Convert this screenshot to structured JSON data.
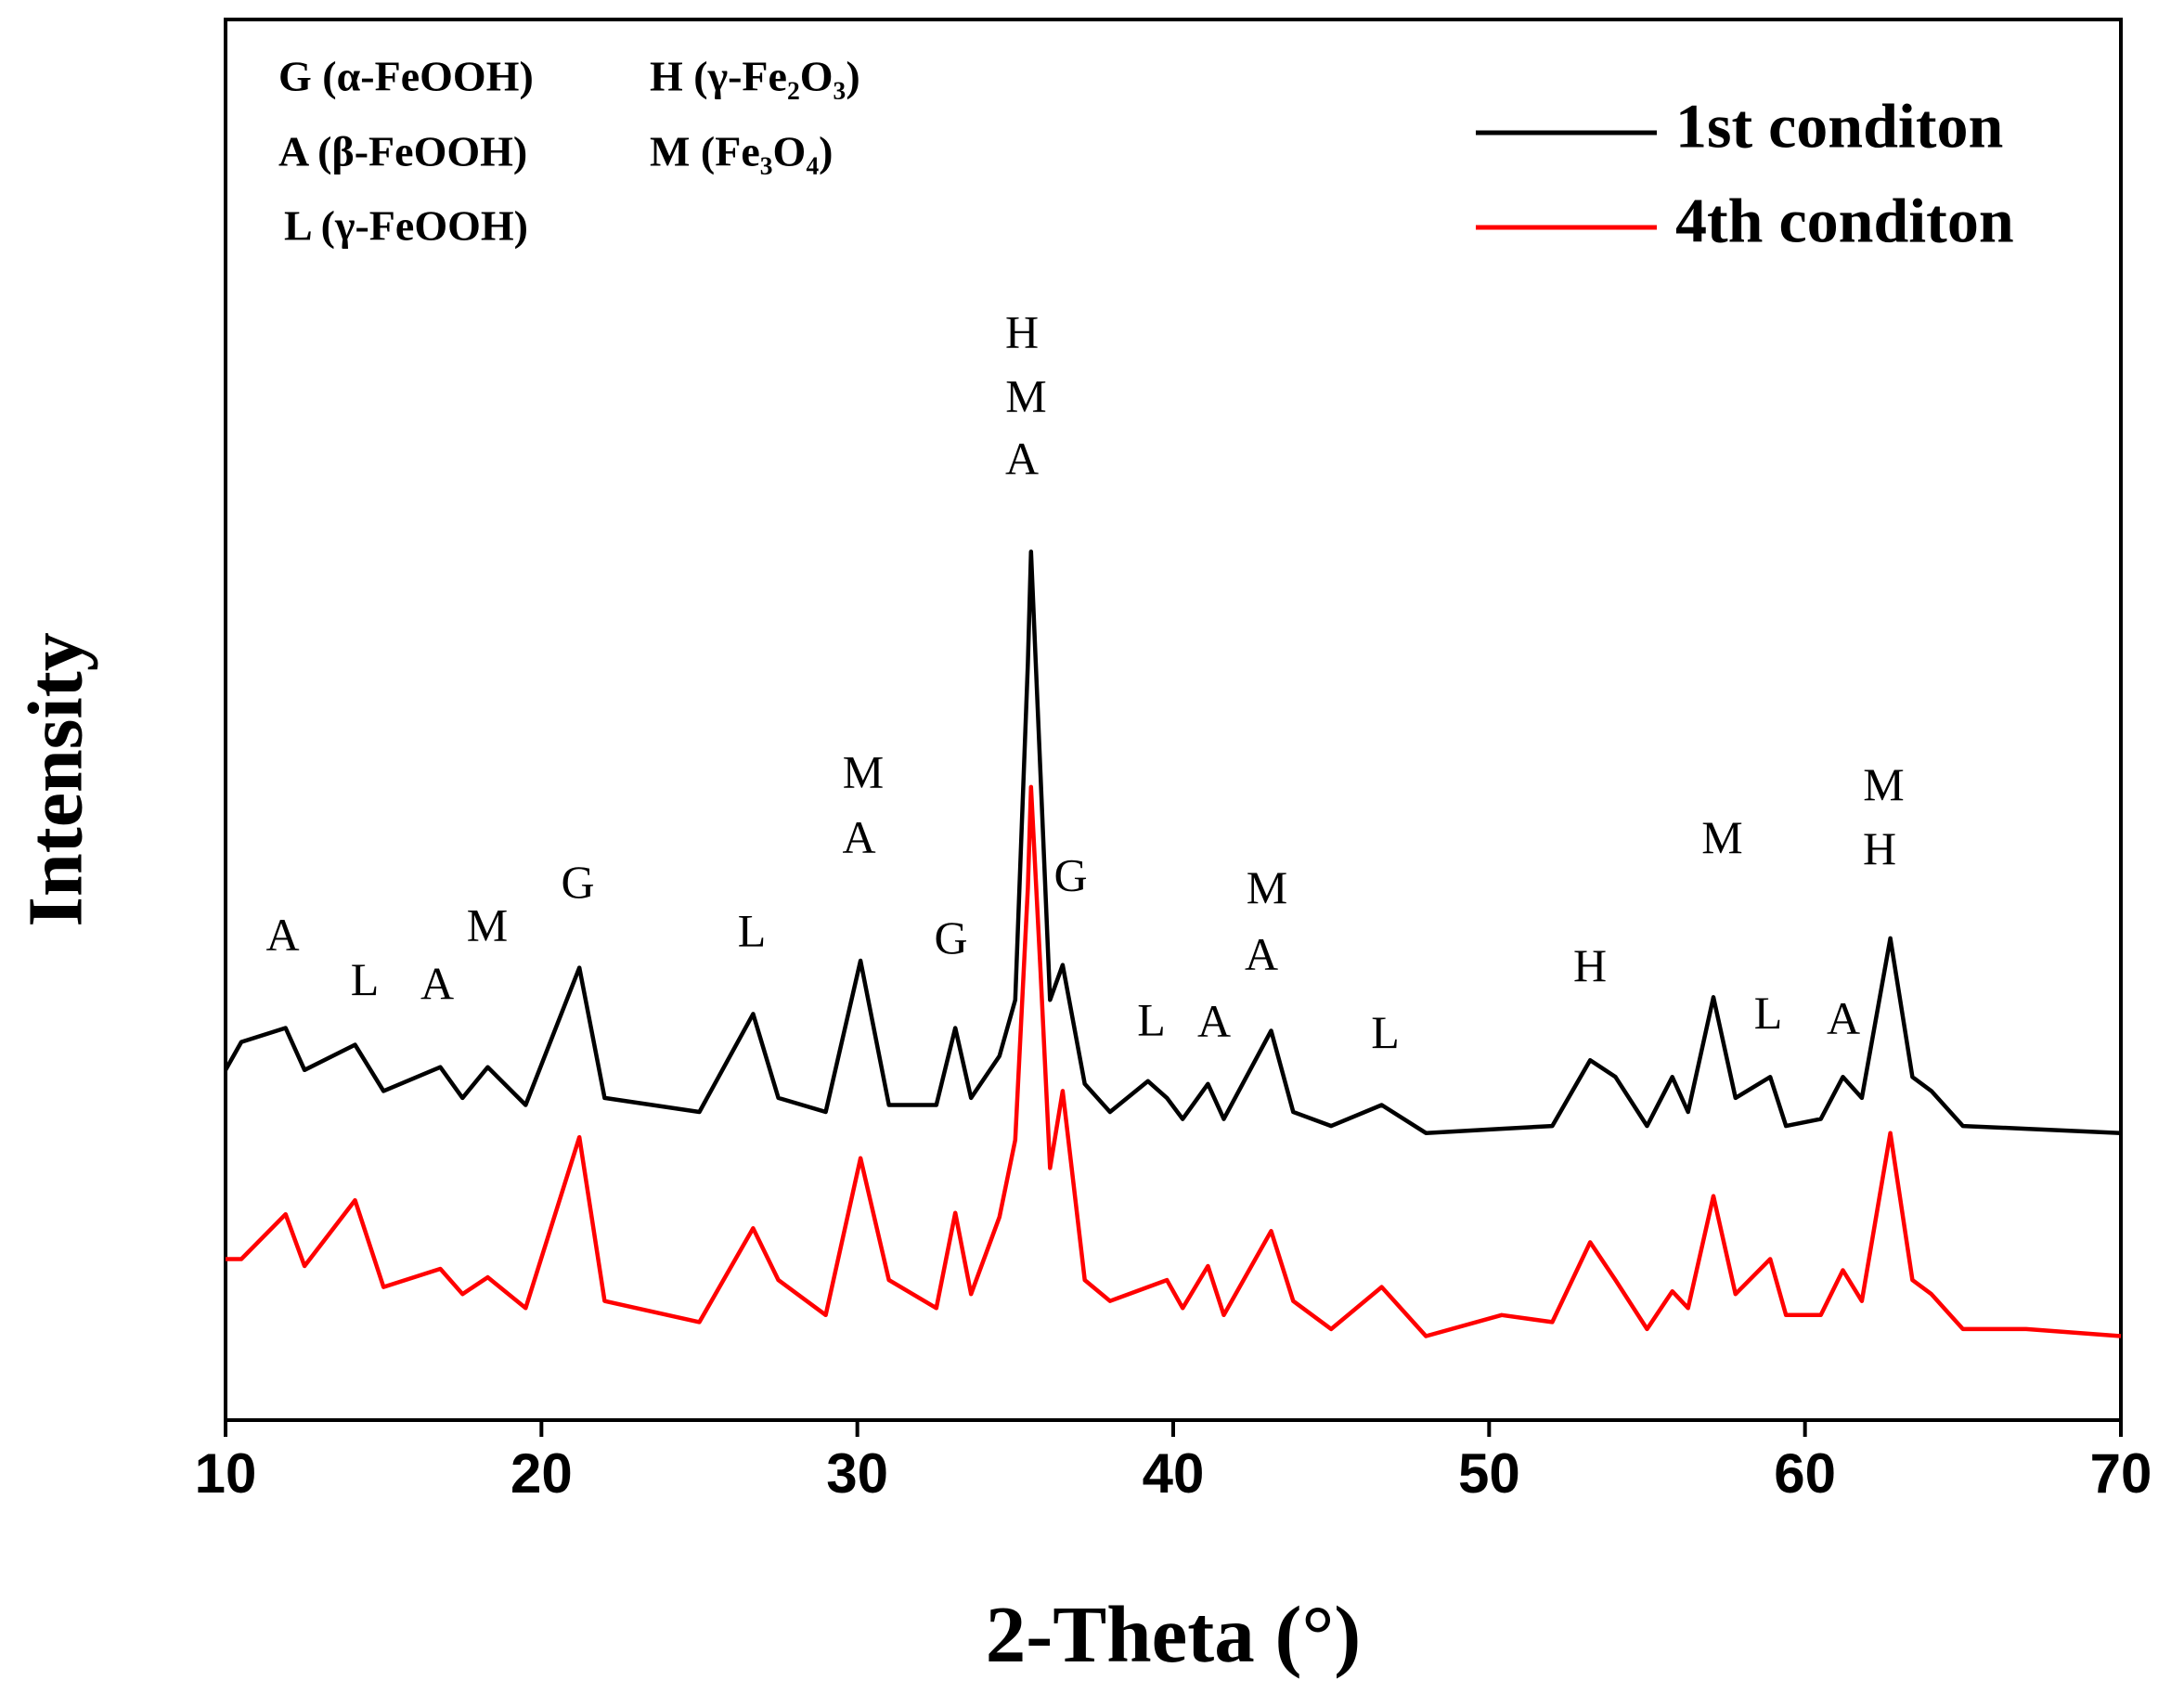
{
  "chart_data": {
    "type": "line",
    "x_label": "2-Theta (°)",
    "y_label": "Intensity",
    "xlim": [
      10,
      70
    ],
    "xticks": [
      10,
      20,
      30,
      40,
      50,
      60,
      70
    ],
    "ylim": [
      0,
      1000
    ],
    "x": [
      10,
      10.5,
      11.9,
      12.5,
      14.1,
      15,
      16.8,
      17.5,
      18.3,
      19.5,
      21.2,
      22,
      25,
      26.7,
      27.5,
      29,
      30.1,
      31,
      32.5,
      33.1,
      33.6,
      34.5,
      35,
      35.4,
      35.5,
      35.8,
      36.1,
      36.5,
      37.2,
      38,
      39.2,
      39.8,
      40.3,
      41.1,
      41.6,
      43.1,
      43.8,
      45,
      46.6,
      48,
      50.4,
      52,
      53.2,
      54,
      55,
      55.8,
      56.3,
      57.1,
      57.8,
      58.9,
      59.4,
      60.5,
      61.2,
      61.8,
      62.7,
      63.4,
      64,
      65,
      67,
      70
    ],
    "series": [
      {
        "name": "1st conditon",
        "color": "#000000",
        "values": [
          250,
          270,
          280,
          250,
          268,
          235,
          252,
          230,
          252,
          225,
          323,
          230,
          220,
          290,
          230,
          220,
          328,
          225,
          225,
          280,
          230,
          260,
          300,
          540,
          620,
          460,
          300,
          325,
          240,
          220,
          242,
          230,
          215,
          240,
          215,
          278,
          220,
          210,
          225,
          205,
          208,
          210,
          257,
          245,
          210,
          245,
          220,
          302,
          230,
          245,
          210,
          215,
          245,
          230,
          344,
          245,
          235,
          210,
          208,
          205
        ]
      },
      {
        "name": "4th conditon",
        "color": "#ff0000",
        "values": [
          115,
          115,
          147,
          110,
          157,
          95,
          108,
          90,
          102,
          80,
          202,
          85,
          70,
          137,
          100,
          75,
          187,
          100,
          80,
          148,
          90,
          145,
          200,
          380,
          452,
          320,
          180,
          235,
          100,
          85,
          95,
          100,
          80,
          110,
          75,
          135,
          85,
          65,
          95,
          60,
          75,
          70,
          127,
          100,
          65,
          92,
          80,
          160,
          90,
          115,
          75,
          75,
          107,
          85,
          205,
          100,
          90,
          65,
          65,
          60
        ]
      }
    ],
    "phase_legend": [
      "G (α-FeOOH)",
      "H (γ-Fe₂O₃)",
      "A (β-FeOOH)",
      "M (Fe₃O₄)",
      "L (γ-FeOOH)"
    ],
    "annotations": [
      "A",
      "L",
      "A",
      "M",
      "G",
      "L",
      "M",
      "A",
      "G",
      "H",
      "M",
      "A",
      "G",
      "L",
      "A",
      "M",
      "A",
      "L",
      "H",
      "M",
      "L",
      "A",
      "M",
      "H"
    ]
  }
}
